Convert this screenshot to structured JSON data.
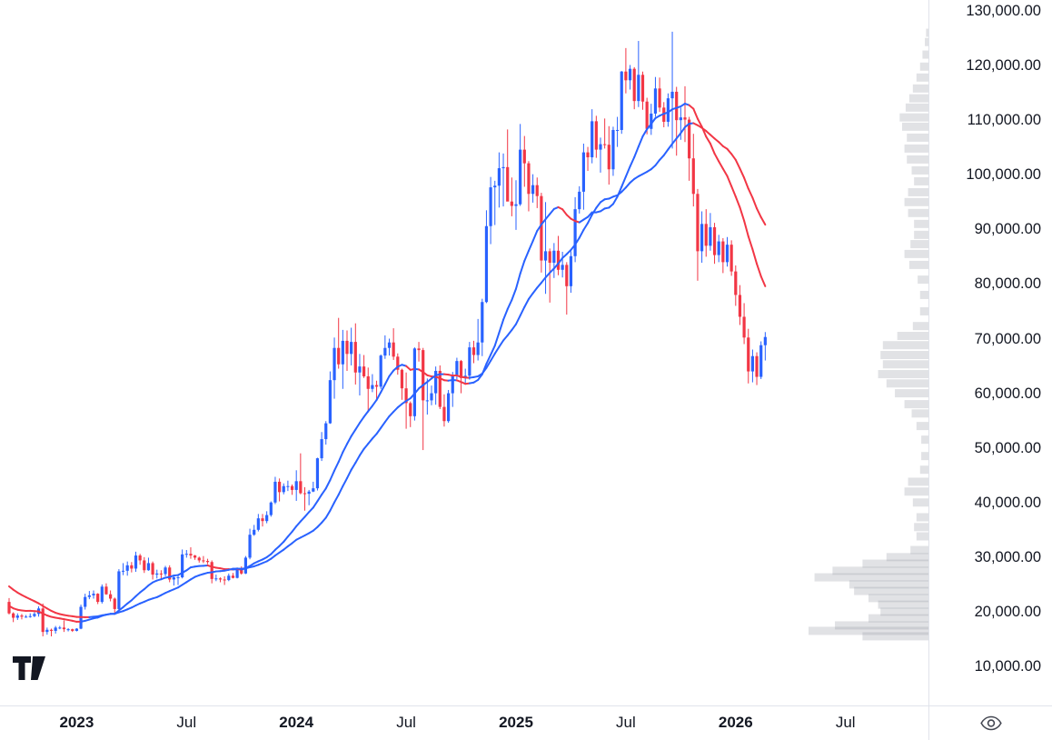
{
  "app": {
    "logo_icon": "tradingview-logo",
    "corner_icon": "eye-icon"
  },
  "colors": {
    "background": "#ffffff",
    "axis_border": "#e0e3eb",
    "axis_text": "#131722",
    "candle_up": "#2962ff",
    "candle_down": "#f23645",
    "ma_up": "#2962ff",
    "ma_down": "#f23645",
    "volume_profile": "#9598a1",
    "logo": "#131722",
    "icon": "#434651"
  },
  "chart_data": {
    "type": "candlestick",
    "title": "",
    "grid": false,
    "legend_position": "none",
    "y_axis": {
      "min": 10000,
      "max": 130000,
      "tick_step": 10000,
      "labels": [
        {
          "value": 130000,
          "text": "130,000.00"
        },
        {
          "value": 120000,
          "text": "120,000.00"
        },
        {
          "value": 110000,
          "text": "110,000.00"
        },
        {
          "value": 100000,
          "text": "100,000.00"
        },
        {
          "value": 90000,
          "text": "90,000.00"
        },
        {
          "value": 80000,
          "text": "80,000.00"
        },
        {
          "value": 70000,
          "text": "70,000.00"
        },
        {
          "value": 60000,
          "text": "60,000.00"
        },
        {
          "value": 50000,
          "text": "50,000.00"
        },
        {
          "value": 40000,
          "text": "40,000.00"
        },
        {
          "value": 30000,
          "text": "30,000.00"
        },
        {
          "value": 20000,
          "text": "20,000.00"
        },
        {
          "value": 10000,
          "text": "10,000.00"
        }
      ]
    },
    "x_axis": {
      "labels": [
        {
          "text": "2023",
          "week": 16,
          "major": true
        },
        {
          "text": "Jul",
          "week": 42,
          "major": false
        },
        {
          "text": "2024",
          "week": 68,
          "major": true
        },
        {
          "text": "Jul",
          "week": 94,
          "major": false
        },
        {
          "text": "2025",
          "week": 120,
          "major": true
        },
        {
          "text": "Jul",
          "week": 146,
          "major": false
        },
        {
          "text": "2026",
          "week": 172,
          "major": true
        },
        {
          "text": "Jul",
          "week": 198,
          "major": false
        }
      ]
    },
    "candles": [
      [
        21800,
        22500,
        19500,
        19700
      ],
      [
        19700,
        19900,
        18100,
        18900
      ],
      [
        18900,
        19700,
        18500,
        19300
      ],
      [
        19300,
        19600,
        18600,
        19100
      ],
      [
        19100,
        19400,
        18900,
        19100
      ],
      [
        19100,
        19700,
        18900,
        19200
      ],
      [
        19200,
        19900,
        19000,
        19600
      ],
      [
        19600,
        21000,
        19100,
        20600
      ],
      [
        20600,
        21500,
        15500,
        16300
      ],
      [
        16300,
        17100,
        15800,
        16700
      ],
      [
        16700,
        16900,
        15500,
        16500
      ],
      [
        16500,
        17400,
        16000,
        17100
      ],
      [
        17100,
        17400,
        16800,
        17100
      ],
      [
        17100,
        18400,
        16300,
        16800
      ],
      [
        16800,
        17000,
        16400,
        16800
      ],
      [
        16800,
        16900,
        16300,
        16500
      ],
      [
        16500,
        17000,
        16400,
        16900
      ],
      [
        16900,
        21300,
        16800,
        20900
      ],
      [
        20900,
        23300,
        20400,
        22700
      ],
      [
        22700,
        23800,
        22300,
        23000
      ],
      [
        23000,
        23900,
        22400,
        23300
      ],
      [
        23300,
        23400,
        21400,
        21800
      ],
      [
        21800,
        25000,
        21500,
        24600
      ],
      [
        24600,
        25200,
        23100,
        23200
      ],
      [
        23200,
        23900,
        21900,
        22400
      ],
      [
        22400,
        22600,
        19600,
        20500
      ],
      [
        20500,
        27800,
        20100,
        27400
      ],
      [
        27400,
        28900,
        26700,
        27500
      ],
      [
        27500,
        29200,
        26600,
        28500
      ],
      [
        28500,
        29100,
        27200,
        27900
      ],
      [
        27900,
        31000,
        27300,
        30300
      ],
      [
        30300,
        30600,
        28600,
        29400
      ],
      [
        29400,
        30000,
        27100,
        27600
      ],
      [
        27600,
        29900,
        27500,
        28900
      ],
      [
        28900,
        29200,
        25900,
        26800
      ],
      [
        26800,
        27700,
        26100,
        27000
      ],
      [
        27000,
        27600,
        25800,
        26900
      ],
      [
        26900,
        28400,
        26500,
        28100
      ],
      [
        28100,
        28500,
        25400,
        25900
      ],
      [
        25900,
        26800,
        24800,
        26300
      ],
      [
        26300,
        26800,
        24900,
        26300
      ],
      [
        26300,
        31400,
        26100,
        30500
      ],
      [
        30500,
        31300,
        29900,
        30600
      ],
      [
        30600,
        31800,
        29700,
        30300
      ],
      [
        30300,
        30400,
        29500,
        29900
      ],
      [
        29900,
        30100,
        29000,
        29400
      ],
      [
        29400,
        30200,
        28900,
        29300
      ],
      [
        29300,
        29700,
        28700,
        29100
      ],
      [
        29100,
        29400,
        25200,
        26000
      ],
      [
        26000,
        26800,
        25600,
        26100
      ],
      [
        26100,
        26300,
        25400,
        25900
      ],
      [
        25900,
        26500,
        24900,
        25800
      ],
      [
        25800,
        27000,
        25600,
        26600
      ],
      [
        26600,
        27100,
        26100,
        26200
      ],
      [
        26200,
        28100,
        26100,
        27900
      ],
      [
        27900,
        28300,
        26800,
        27000
      ],
      [
        27000,
        30200,
        26900,
        29900
      ],
      [
        29900,
        35200,
        29600,
        34100
      ],
      [
        34100,
        35900,
        33900,
        35000
      ],
      [
        35000,
        37900,
        34700,
        37100
      ],
      [
        37100,
        37900,
        35600,
        36600
      ],
      [
        36600,
        38400,
        36200,
        37700
      ],
      [
        37700,
        40200,
        37400,
        40000
      ],
      [
        40000,
        44700,
        39700,
        43800
      ],
      [
        43800,
        44400,
        40200,
        41900
      ],
      [
        41900,
        43500,
        41500,
        43000
      ],
      [
        43000,
        44000,
        42100,
        43000
      ],
      [
        43000,
        43300,
        41400,
        42300
      ],
      [
        42300,
        45900,
        40300,
        43900
      ],
      [
        43900,
        49000,
        41500,
        41700
      ],
      [
        41700,
        42800,
        38500,
        41600
      ],
      [
        41600,
        42300,
        39500,
        42000
      ],
      [
        42000,
        43800,
        41900,
        42600
      ],
      [
        42600,
        48200,
        42200,
        48100
      ],
      [
        48100,
        52900,
        47600,
        51600
      ],
      [
        51600,
        54900,
        50600,
        54500
      ],
      [
        54500,
        64000,
        54400,
        62400
      ],
      [
        62400,
        70200,
        59000,
        68300
      ],
      [
        68300,
        73800,
        64500,
        65300
      ],
      [
        65300,
        71600,
        60800,
        69600
      ],
      [
        69600,
        71500,
        64100,
        67200
      ],
      [
        67200,
        72000,
        65100,
        69400
      ],
      [
        69400,
        72800,
        61600,
        63800
      ],
      [
        63800,
        67200,
        59600,
        64900
      ],
      [
        64900,
        67000,
        62800,
        63100
      ],
      [
        63100,
        64700,
        56500,
        60800
      ],
      [
        60800,
        63500,
        60200,
        61500
      ],
      [
        61500,
        62300,
        58600,
        61200
      ],
      [
        61200,
        67100,
        60800,
        66900
      ],
      [
        66900,
        70600,
        66300,
        68300
      ],
      [
        68300,
        70000,
        66900,
        69300
      ],
      [
        69300,
        71900,
        66100,
        66700
      ],
      [
        66700,
        67300,
        63400,
        64300
      ],
      [
        64300,
        64500,
        58800,
        60900
      ],
      [
        60900,
        63800,
        53500,
        58200
      ],
      [
        58200,
        58500,
        53800,
        55800
      ],
      [
        55800,
        68400,
        55000,
        68200
      ],
      [
        68200,
        69400,
        65800,
        67900
      ],
      [
        67900,
        68300,
        49600,
        58700
      ],
      [
        58700,
        62700,
        56100,
        58700
      ],
      [
        58700,
        61400,
        57800,
        60000
      ],
      [
        60000,
        64900,
        57900,
        64100
      ],
      [
        64100,
        65100,
        57100,
        57500
      ],
      [
        57500,
        59800,
        53900,
        54900
      ],
      [
        54900,
        60600,
        54600,
        60000
      ],
      [
        60000,
        63900,
        57500,
        63300
      ],
      [
        63300,
        66500,
        62600,
        65900
      ],
      [
        65900,
        66100,
        60000,
        62800
      ],
      [
        62800,
        64500,
        61600,
        63200
      ],
      [
        63200,
        69400,
        62500,
        68400
      ],
      [
        68400,
        69600,
        65500,
        67000
      ],
      [
        67000,
        73600,
        66000,
        69300
      ],
      [
        69300,
        77300,
        66800,
        76700
      ],
      [
        76700,
        93500,
        76500,
        90600
      ],
      [
        90600,
        99600,
        87300,
        97700
      ],
      [
        97700,
        98900,
        90800,
        98000
      ],
      [
        98000,
        104100,
        94000,
        101200
      ],
      [
        101200,
        103900,
        94200,
        101400
      ],
      [
        101400,
        108300,
        96000,
        95100
      ],
      [
        95100,
        99500,
        92400,
        94300
      ],
      [
        94300,
        99000,
        89900,
        94600
      ],
      [
        94600,
        109300,
        94300,
        104600
      ],
      [
        104600,
        107100,
        97800,
        102100
      ],
      [
        102100,
        102500,
        93300,
        96500
      ],
      [
        96500,
        100100,
        94900,
        98100
      ],
      [
        98100,
        99500,
        93900,
        96100
      ],
      [
        96100,
        96700,
        82100,
        84300
      ],
      [
        84300,
        95000,
        78200,
        86000
      ],
      [
        86000,
        86500,
        76600,
        83900
      ],
      [
        83900,
        87500,
        81100,
        86100
      ],
      [
        86100,
        88800,
        81600,
        82600
      ],
      [
        82600,
        85900,
        81200,
        83500
      ],
      [
        83500,
        84000,
        74400,
        79600
      ],
      [
        79600,
        86000,
        78400,
        85100
      ],
      [
        85100,
        95900,
        84000,
        93700
      ],
      [
        93700,
        97900,
        92900,
        96900
      ],
      [
        96900,
        105700,
        93600,
        104100
      ],
      [
        104100,
        105100,
        100700,
        103200
      ],
      [
        103200,
        112000,
        102100,
        109800
      ],
      [
        109800,
        110800,
        103100,
        104600
      ],
      [
        104600,
        106800,
        100400,
        105600
      ],
      [
        105600,
        110300,
        104800,
        105500
      ],
      [
        105500,
        108900,
        98200,
        101000
      ],
      [
        101000,
        108800,
        99800,
        108200
      ],
      [
        108200,
        110600,
        105100,
        108200
      ],
      [
        108200,
        119000,
        107500,
        118900
      ],
      [
        118900,
        123200,
        114900,
        117300
      ],
      [
        117300,
        120100,
        115600,
        119400
      ],
      [
        119400,
        119700,
        112000,
        113500
      ],
      [
        113500,
        124500,
        112400,
        118300
      ],
      [
        118300,
        118900,
        111900,
        113400
      ],
      [
        113400,
        114100,
        107400,
        108400
      ],
      [
        108400,
        113000,
        107300,
        111200
      ],
      [
        111200,
        117900,
        110600,
        115800
      ],
      [
        115800,
        117800,
        111500,
        112300
      ],
      [
        112300,
        113300,
        108700,
        109700
      ],
      [
        109700,
        114900,
        108800,
        114000
      ],
      [
        114000,
        126200,
        104800,
        115200
      ],
      [
        115200,
        116100,
        103500,
        110000
      ],
      [
        110000,
        112300,
        106400,
        110500
      ],
      [
        110500,
        116200,
        106000,
        110100
      ],
      [
        110100,
        110600,
        98900,
        103000
      ],
      [
        103000,
        107500,
        94200,
        96500
      ],
      [
        96500,
        97400,
        80600,
        86000
      ],
      [
        86000,
        93300,
        83900,
        91000
      ],
      [
        91000,
        93700,
        85000,
        87000
      ],
      [
        87000,
        93000,
        86100,
        90400
      ],
      [
        90400,
        91200,
        83700,
        85300
      ],
      [
        85300,
        89000,
        84000,
        87800
      ],
      [
        87800,
        88400,
        82000,
        84000
      ],
      [
        84000,
        88600,
        83200,
        87200
      ],
      [
        87200,
        88000,
        81500,
        82300
      ],
      [
        82300,
        83400,
        76000,
        78000
      ],
      [
        78000,
        79800,
        72500,
        74000
      ],
      [
        74000,
        76500,
        69000,
        70200
      ],
      [
        70200,
        71800,
        61800,
        64000
      ],
      [
        64000,
        68000,
        62000,
        66800
      ],
      [
        66800,
        67500,
        61500,
        63000
      ],
      [
        63000,
        69500,
        62600,
        68800
      ],
      [
        68800,
        71200,
        66000,
        70300
      ]
    ],
    "moving_averages": {
      "periods": [
        18,
        28
      ],
      "seed_closes": [
        38500,
        36200,
        34000,
        31300,
        30200,
        29700,
        29900,
        31700,
        29800,
        29400,
        28800,
        26800,
        24000,
        21500,
        20500,
        19000,
        20600,
        21600,
        23300,
        22900,
        21100,
        19900,
        19400,
        19500,
        19200,
        19300,
        20100,
        20800
      ]
    },
    "volume_profile": [
      [
        15500,
        0.55
      ],
      [
        16500,
        1.0
      ],
      [
        17500,
        0.78
      ],
      [
        18800,
        0.5
      ],
      [
        20000,
        0.4
      ],
      [
        21300,
        0.42
      ],
      [
        22500,
        0.5
      ],
      [
        23800,
        0.62
      ],
      [
        25000,
        0.66
      ],
      [
        26300,
        0.95
      ],
      [
        27500,
        0.8
      ],
      [
        28800,
        0.55
      ],
      [
        30000,
        0.35
      ],
      [
        31300,
        0.15
      ],
      [
        33800,
        0.1
      ],
      [
        35500,
        0.12
      ],
      [
        37300,
        0.1
      ],
      [
        40000,
        0.13
      ],
      [
        42000,
        0.2
      ],
      [
        43800,
        0.17
      ],
      [
        46000,
        0.07
      ],
      [
        48500,
        0.06
      ],
      [
        51500,
        0.06
      ],
      [
        54000,
        0.1
      ],
      [
        56300,
        0.14
      ],
      [
        58000,
        0.2
      ],
      [
        60000,
        0.28
      ],
      [
        61800,
        0.35
      ],
      [
        63500,
        0.42
      ],
      [
        65300,
        0.38
      ],
      [
        67000,
        0.4
      ],
      [
        68800,
        0.38
      ],
      [
        70500,
        0.26
      ],
      [
        72300,
        0.13
      ],
      [
        75000,
        0.07
      ],
      [
        78000,
        0.07
      ],
      [
        80800,
        0.09
      ],
      [
        83500,
        0.16
      ],
      [
        85500,
        0.2
      ],
      [
        87300,
        0.15
      ],
      [
        89000,
        0.12
      ],
      [
        91000,
        0.12
      ],
      [
        93000,
        0.17
      ],
      [
        95000,
        0.2
      ],
      [
        96800,
        0.17
      ],
      [
        98800,
        0.12
      ],
      [
        100800,
        0.14
      ],
      [
        102800,
        0.18
      ],
      [
        104800,
        0.2
      ],
      [
        106800,
        0.18
      ],
      [
        108800,
        0.22
      ],
      [
        110500,
        0.24
      ],
      [
        112300,
        0.19
      ],
      [
        114000,
        0.16
      ],
      [
        115800,
        0.13
      ],
      [
        117800,
        0.1
      ],
      [
        119800,
        0.07
      ],
      [
        122000,
        0.05
      ],
      [
        124300,
        0.03
      ],
      [
        126000,
        0.02
      ]
    ]
  }
}
